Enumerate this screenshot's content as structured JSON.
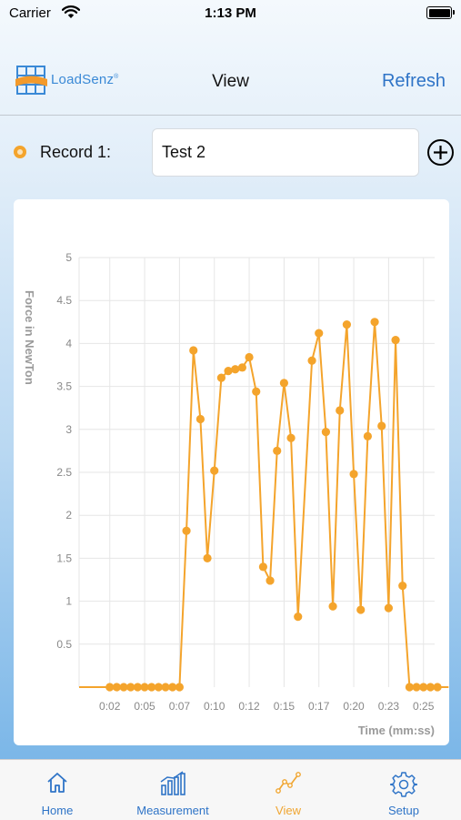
{
  "status_bar": {
    "carrier": "Carrier",
    "time": "1:13 PM"
  },
  "navbar": {
    "logo_text": "LoadSenz",
    "logo_mark": "®",
    "title": "View",
    "refresh_label": "Refresh"
  },
  "record": {
    "label": "Record 1:",
    "value": "Test 2"
  },
  "colors": {
    "accent": "#f4a42c",
    "link": "#2f74c7",
    "grid": "#e6e6e6",
    "axis_text": "#888888"
  },
  "chart_data": {
    "type": "line",
    "ylabel": "Force in NewTon",
    "xlabel": "Time (mm:ss)",
    "ylim": [
      0,
      5
    ],
    "yticks": [
      {
        "v": 5,
        "label": "5"
      },
      {
        "v": 4.5,
        "label": "4.5"
      },
      {
        "v": 4,
        "label": "4"
      },
      {
        "v": 3.5,
        "label": "3.5"
      },
      {
        "v": 3,
        "label": "3"
      },
      {
        "v": 2.5,
        "label": "2.5"
      },
      {
        "v": 2,
        "label": "2"
      },
      {
        "v": 1.5,
        "label": "1.5"
      },
      {
        "v": 1,
        "label": "1"
      },
      {
        "v": 0.5,
        "label": "0.5"
      }
    ],
    "xlim": [
      -0.2,
      25.3
    ],
    "xticks": [
      {
        "v": 2,
        "label": "0:02"
      },
      {
        "v": 4.5,
        "label": "0:05"
      },
      {
        "v": 7,
        "label": "0:07"
      },
      {
        "v": 9.5,
        "label": "0:10"
      },
      {
        "v": 12,
        "label": "0:12"
      },
      {
        "v": 14.5,
        "label": "0:15"
      },
      {
        "v": 17,
        "label": "0:17"
      },
      {
        "v": 19.5,
        "label": "0:20"
      },
      {
        "v": 22,
        "label": "0:23"
      },
      {
        "v": 24.5,
        "label": "0:25"
      }
    ],
    "grid": true,
    "series": [
      {
        "values": [
          [
            -0.2,
            0
          ],
          [
            2,
            0
          ],
          [
            2.5,
            0
          ],
          [
            3,
            0
          ],
          [
            3.5,
            0
          ],
          [
            4,
            0
          ],
          [
            4.5,
            0
          ],
          [
            5,
            0
          ],
          [
            5.5,
            0
          ],
          [
            6,
            0
          ],
          [
            6.5,
            0
          ],
          [
            7,
            0
          ],
          [
            7.5,
            1.82
          ],
          [
            8,
            3.92
          ],
          [
            8.5,
            3.12
          ],
          [
            9,
            1.5
          ],
          [
            9.5,
            2.52
          ],
          [
            10,
            3.6
          ],
          [
            10.5,
            3.68
          ],
          [
            11,
            3.7
          ],
          [
            11.5,
            3.72
          ],
          [
            12,
            3.84
          ],
          [
            12.5,
            3.44
          ],
          [
            13,
            1.4
          ],
          [
            13.5,
            1.24
          ],
          [
            14,
            2.75
          ],
          [
            14.5,
            3.54
          ],
          [
            15,
            2.9
          ],
          [
            15.5,
            0.82
          ],
          [
            16.5,
            3.8
          ],
          [
            17,
            4.12
          ],
          [
            17.5,
            2.97
          ],
          [
            18,
            0.94
          ],
          [
            18.5,
            3.22
          ],
          [
            19,
            4.22
          ],
          [
            19.5,
            2.48
          ],
          [
            20,
            0.9
          ],
          [
            20.5,
            2.92
          ],
          [
            21,
            4.25
          ],
          [
            21.5,
            3.04
          ],
          [
            22,
            0.92
          ],
          [
            22.5,
            4.04
          ],
          [
            23,
            1.18
          ],
          [
            23.5,
            0
          ],
          [
            24,
            0
          ],
          [
            24.5,
            0
          ],
          [
            25,
            0
          ],
          [
            25.5,
            0
          ],
          [
            26,
            0
          ],
          [
            26.3,
            0
          ]
        ]
      }
    ]
  },
  "tabs": [
    {
      "id": "home",
      "label": "Home",
      "icon": "house-icon"
    },
    {
      "id": "measurement",
      "label": "Measurement",
      "icon": "bar-chart-icon"
    },
    {
      "id": "view",
      "label": "View",
      "icon": "line-chart-icon",
      "active": true
    },
    {
      "id": "setup",
      "label": "Setup",
      "icon": "gear-icon"
    }
  ]
}
